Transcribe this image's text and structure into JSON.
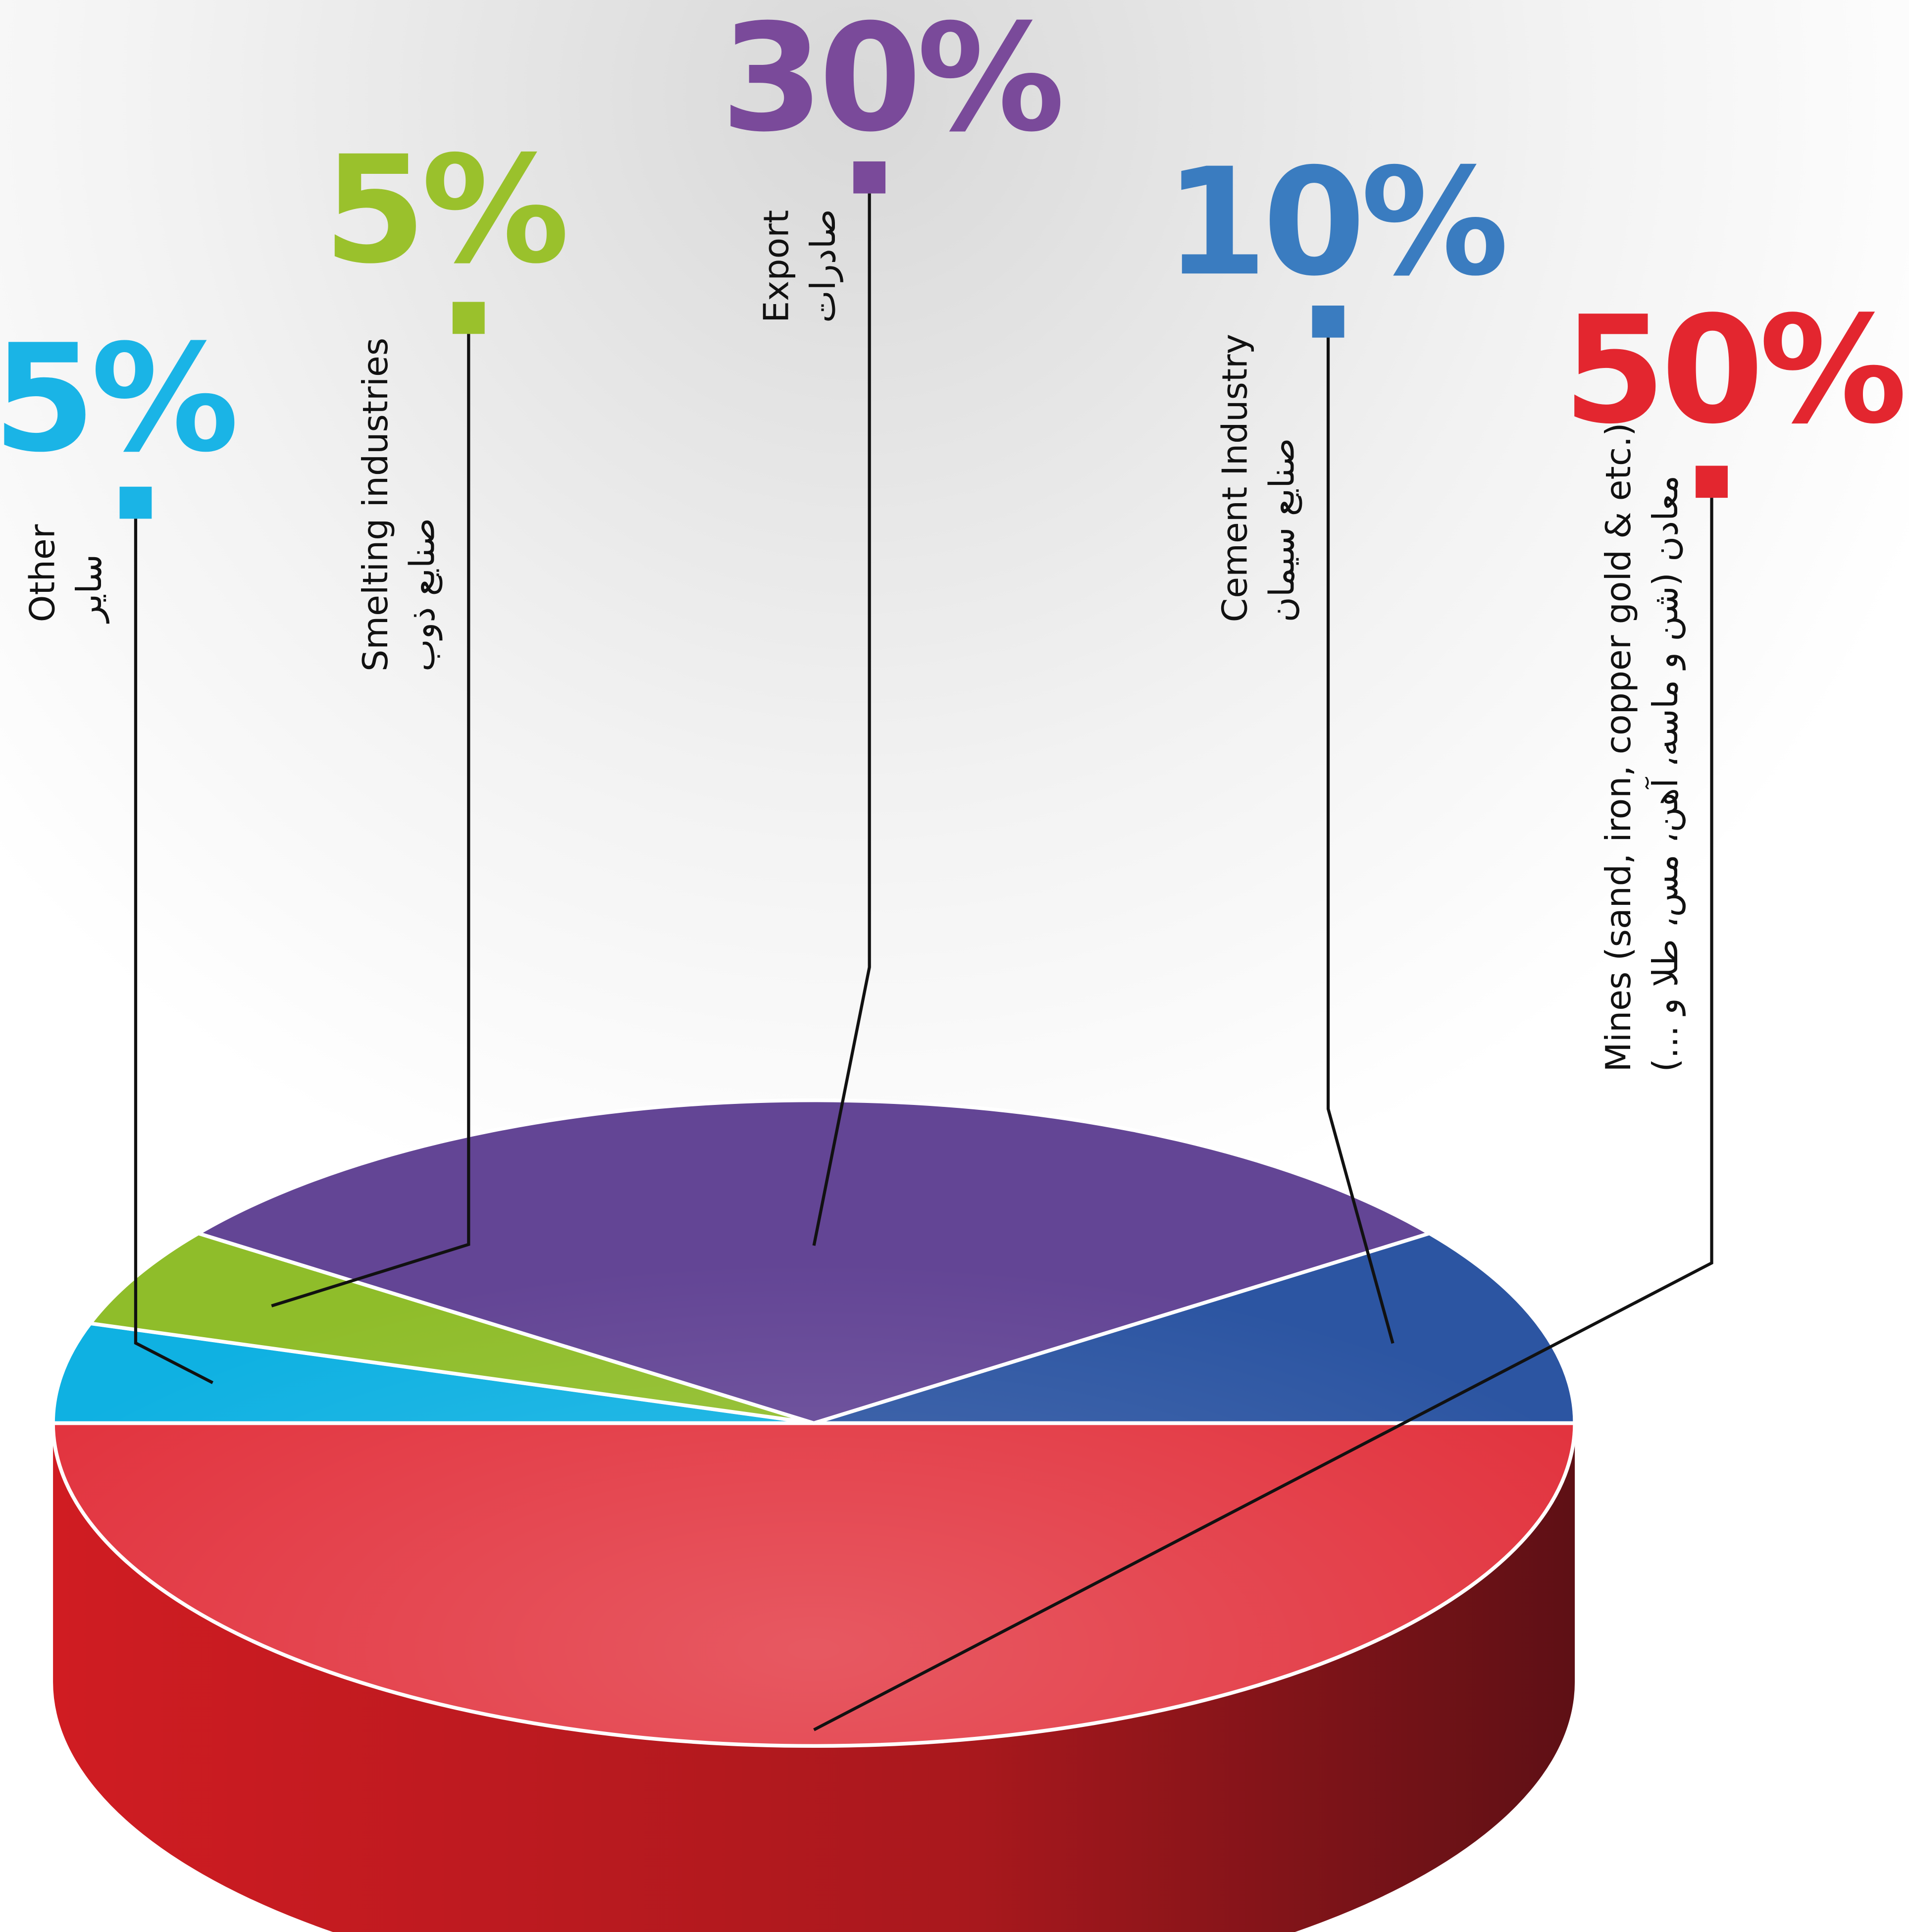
{
  "chart_data": {
    "type": "pie3d",
    "categories": [
      "Mines (sand, iron, copper gold & etc.)",
      "Other",
      "Smelting industries",
      "Export",
      "Cement Industry"
    ],
    "categories_fa": [
      "معادن (شن و ماسه، آهن، مس، طلا و ...)",
      "سایر",
      "صنایع ذوب",
      "صادرات",
      "صنایع سیمان"
    ],
    "values": [
      50,
      5,
      5,
      30,
      10
    ],
    "value_labels": [
      "50%",
      "5%",
      "5%",
      "30%",
      "10%"
    ],
    "colors": [
      "#e2343f",
      "#0fb1e2",
      "#8fbd2a",
      "#634595",
      "#2c55a2"
    ],
    "label_colors": [
      "#e3262f",
      "#1ab4e6",
      "#9ac12c",
      "#7a4a9a",
      "#3a7cc0"
    ]
  }
}
